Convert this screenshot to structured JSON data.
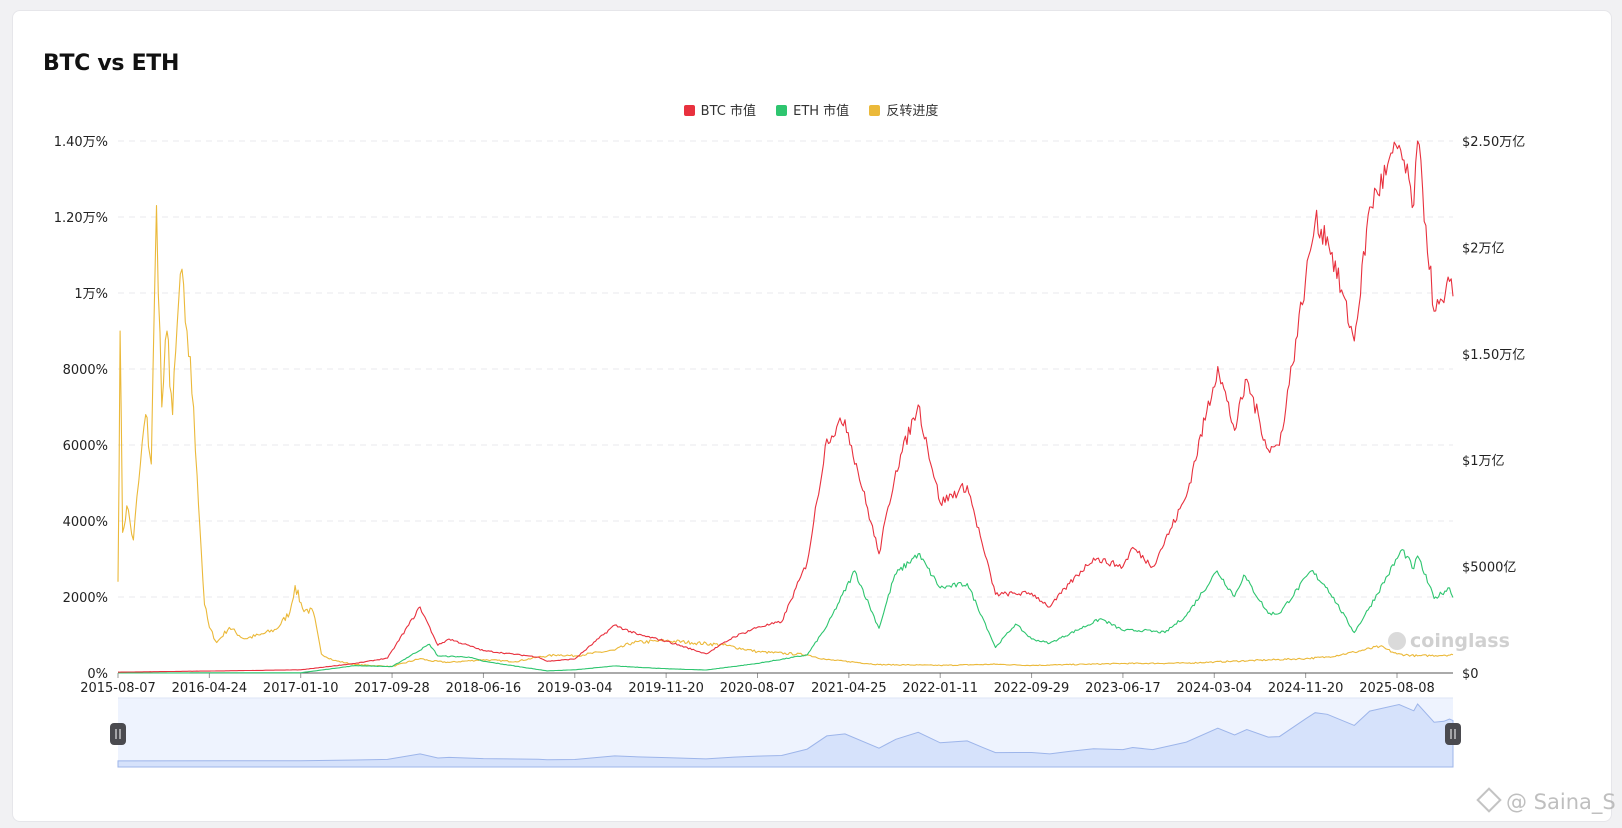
{
  "title": "BTC vs ETH",
  "legend": [
    {
      "name": "BTC 市值",
      "color": "#e8313e"
    },
    {
      "name": "ETH 市值",
      "color": "#2ec56f"
    },
    {
      "name": "反转进度",
      "color": "#ebb93a"
    }
  ],
  "watermark": "coinglass",
  "signature": "@ Saina_S",
  "chart_data": {
    "type": "line",
    "x_ticks": [
      "2015-08-07",
      "2016-04-24",
      "2017-01-10",
      "2017-09-28",
      "2018-06-16",
      "2019-03-04",
      "2019-11-20",
      "2020-08-07",
      "2021-04-25",
      "2022-01-11",
      "2022-09-29",
      "2023-06-17",
      "2024-03-04",
      "2024-11-20",
      "2025-08-08"
    ],
    "x_range": [
      "2015-08-07",
      "2026-01-15"
    ],
    "left_axis": {
      "ticks": [
        "0%",
        "2000%",
        "4000%",
        "6000%",
        "8000%",
        "1万%",
        "1.20万%",
        "1.40万%"
      ],
      "range": [
        0,
        14000
      ]
    },
    "right_axis": {
      "ticks": [
        "$0",
        "$5000亿",
        "$1万亿",
        "$1.50万亿",
        "$2万亿",
        "$2.50万亿"
      ],
      "range": [
        0,
        2500
      ]
    },
    "grid": true,
    "legend_position": "top-center",
    "series": [
      {
        "name": "BTC 市值",
        "axis": "right",
        "color": "#e8313e",
        "points": [
          [
            "2015-08-07",
            4
          ],
          [
            "2016-06-01",
            10
          ],
          [
            "2017-01-10",
            15
          ],
          [
            "2017-06-15",
            45
          ],
          [
            "2017-09-15",
            70
          ],
          [
            "2017-12-17",
            310
          ],
          [
            "2018-02-06",
            130
          ],
          [
            "2018-03-10",
            160
          ],
          [
            "2018-06-16",
            105
          ],
          [
            "2018-11-20",
            75
          ],
          [
            "2018-12-15",
            55
          ],
          [
            "2019-03-04",
            66
          ],
          [
            "2019-06-26",
            225
          ],
          [
            "2019-09-01",
            180
          ],
          [
            "2019-11-20",
            150
          ],
          [
            "2020-03-13",
            90
          ],
          [
            "2020-06-01",
            170
          ],
          [
            "2020-08-07",
            215
          ],
          [
            "2020-10-15",
            240
          ],
          [
            "2020-12-27",
            520
          ],
          [
            "2021-02-21",
            1100
          ],
          [
            "2021-04-14",
            1190
          ],
          [
            "2021-07-20",
            560
          ],
          [
            "2021-09-06",
            950
          ],
          [
            "2021-11-09",
            1260
          ],
          [
            "2022-01-11",
            800
          ],
          [
            "2022-03-29",
            880
          ],
          [
            "2022-05-15",
            580
          ],
          [
            "2022-06-18",
            370
          ],
          [
            "2022-09-29",
            375
          ],
          [
            "2022-11-20",
            310
          ],
          [
            "2023-01-15",
            420
          ],
          [
            "2023-03-25",
            540
          ],
          [
            "2023-06-17",
            500
          ],
          [
            "2023-07-15",
            590
          ],
          [
            "2023-09-10",
            500
          ],
          [
            "2023-12-15",
            830
          ],
          [
            "2024-03-14",
            1440
          ],
          [
            "2024-05-01",
            1140
          ],
          [
            "2024-06-05",
            1380
          ],
          [
            "2024-08-05",
            1050
          ],
          [
            "2024-09-06",
            1070
          ],
          [
            "2024-11-20",
            1850
          ],
          [
            "2024-12-17",
            2120
          ],
          [
            "2025-01-21",
            2050
          ],
          [
            "2025-04-08",
            1560
          ],
          [
            "2025-05-22",
            2190
          ],
          [
            "2025-08-14",
            2480
          ],
          [
            "2025-09-25",
            2200
          ],
          [
            "2025-10-06",
            2500
          ],
          [
            "2025-11-22",
            1700
          ],
          [
            "2025-12-20",
            1740
          ],
          [
            "2026-01-05",
            1840
          ],
          [
            "2026-01-15",
            1770
          ]
        ]
      },
      {
        "name": "ETH 市值",
        "axis": "right",
        "color": "#2ec56f",
        "points": [
          [
            "2015-08-07",
            0.1
          ],
          [
            "2016-06-01",
            1
          ],
          [
            "2017-01-10",
            1
          ],
          [
            "2017-06-15",
            35
          ],
          [
            "2017-09-28",
            30
          ],
          [
            "2018-01-13",
            135
          ],
          [
            "2018-02-06",
            80
          ],
          [
            "2018-05-05",
            75
          ],
          [
            "2018-06-16",
            55
          ],
          [
            "2018-12-15",
            10
          ],
          [
            "2019-03-04",
            15
          ],
          [
            "2019-06-26",
            33
          ],
          [
            "2019-11-20",
            20
          ],
          [
            "2020-03-13",
            14
          ],
          [
            "2020-08-07",
            45
          ],
          [
            "2020-12-27",
            85
          ],
          [
            "2021-02-21",
            220
          ],
          [
            "2021-05-12",
            480
          ],
          [
            "2021-07-20",
            210
          ],
          [
            "2021-09-03",
            460
          ],
          [
            "2021-11-09",
            560
          ],
          [
            "2022-01-11",
            400
          ],
          [
            "2022-03-29",
            420
          ],
          [
            "2022-05-15",
            250
          ],
          [
            "2022-06-18",
            120
          ],
          [
            "2022-08-14",
            230
          ],
          [
            "2022-09-29",
            160
          ],
          [
            "2022-11-20",
            140
          ],
          [
            "2023-04-15",
            255
          ],
          [
            "2023-06-17",
            200
          ],
          [
            "2023-08-15",
            200
          ],
          [
            "2023-10-15",
            190
          ],
          [
            "2023-12-15",
            270
          ],
          [
            "2024-03-12",
            480
          ],
          [
            "2024-05-01",
            360
          ],
          [
            "2024-05-27",
            460
          ],
          [
            "2024-08-05",
            280
          ],
          [
            "2024-09-06",
            280
          ],
          [
            "2024-12-06",
            480
          ],
          [
            "2025-01-21",
            400
          ],
          [
            "2025-04-08",
            190
          ],
          [
            "2025-05-22",
            310
          ],
          [
            "2025-08-23",
            580
          ],
          [
            "2025-09-25",
            490
          ],
          [
            "2025-10-06",
            550
          ],
          [
            "2025-11-22",
            350
          ],
          [
            "2026-01-05",
            400
          ],
          [
            "2026-01-15",
            355
          ]
        ]
      },
      {
        "name": "反转进度",
        "axis": "left",
        "color": "#ebb93a",
        "points": [
          [
            "2015-08-07",
            2400
          ],
          [
            "2015-08-13",
            9000
          ],
          [
            "2015-08-20",
            3700
          ],
          [
            "2015-09-01",
            4400
          ],
          [
            "2015-09-20",
            3500
          ],
          [
            "2015-10-10",
            5500
          ],
          [
            "2015-10-25",
            6800
          ],
          [
            "2015-11-10",
            5500
          ],
          [
            "2015-11-25",
            12300
          ],
          [
            "2015-12-10",
            7000
          ],
          [
            "2015-12-25",
            9000
          ],
          [
            "2016-01-10",
            6800
          ],
          [
            "2016-02-01",
            10500
          ],
          [
            "2016-02-20",
            9000
          ],
          [
            "2016-03-10",
            7000
          ],
          [
            "2016-03-20",
            5200
          ],
          [
            "2016-04-01",
            3200
          ],
          [
            "2016-04-10",
            1800
          ],
          [
            "2016-04-24",
            1200
          ],
          [
            "2016-05-15",
            800
          ],
          [
            "2016-06-20",
            1200
          ],
          [
            "2016-08-01",
            900
          ],
          [
            "2016-09-15",
            1000
          ],
          [
            "2016-11-01",
            1150
          ],
          [
            "2016-12-10",
            1600
          ],
          [
            "2016-12-25",
            2300
          ],
          [
            "2017-01-15",
            1700
          ],
          [
            "2017-02-15",
            1600
          ],
          [
            "2017-03-10",
            500
          ],
          [
            "2017-04-15",
            330
          ],
          [
            "2017-06-15",
            220
          ],
          [
            "2017-09-28",
            170
          ],
          [
            "2017-12-17",
            380
          ],
          [
            "2018-01-15",
            320
          ],
          [
            "2018-03-10",
            280
          ],
          [
            "2018-06-16",
            350
          ],
          [
            "2018-09-15",
            300
          ],
          [
            "2018-11-20",
            420
          ],
          [
            "2019-01-15",
            480
          ],
          [
            "2019-03-04",
            450
          ],
          [
            "2019-06-26",
            600
          ],
          [
            "2019-08-15",
            800
          ],
          [
            "2019-11-20",
            850
          ],
          [
            "2020-02-01",
            800
          ],
          [
            "2020-05-01",
            740
          ],
          [
            "2020-08-07",
            560
          ],
          [
            "2020-12-27",
            480
          ],
          [
            "2021-02-21",
            350
          ],
          [
            "2021-04-25",
            300
          ],
          [
            "2021-07-20",
            220
          ],
          [
            "2021-11-09",
            210
          ],
          [
            "2022-01-11",
            200
          ],
          [
            "2022-06-18",
            230
          ],
          [
            "2022-09-29",
            200
          ],
          [
            "2023-06-17",
            250
          ],
          [
            "2023-12-15",
            260
          ],
          [
            "2024-03-04",
            290
          ],
          [
            "2024-11-20",
            380
          ],
          [
            "2025-01-21",
            420
          ],
          [
            "2025-04-08",
            550
          ],
          [
            "2025-06-20",
            700
          ],
          [
            "2025-08-08",
            500
          ],
          [
            "2025-10-06",
            450
          ],
          [
            "2025-12-20",
            470
          ],
          [
            "2026-01-15",
            480
          ]
        ]
      }
    ],
    "navigator": {
      "range": [
        "2015-08-07",
        "2026-01-15"
      ],
      "series": "BTC 市值"
    }
  }
}
